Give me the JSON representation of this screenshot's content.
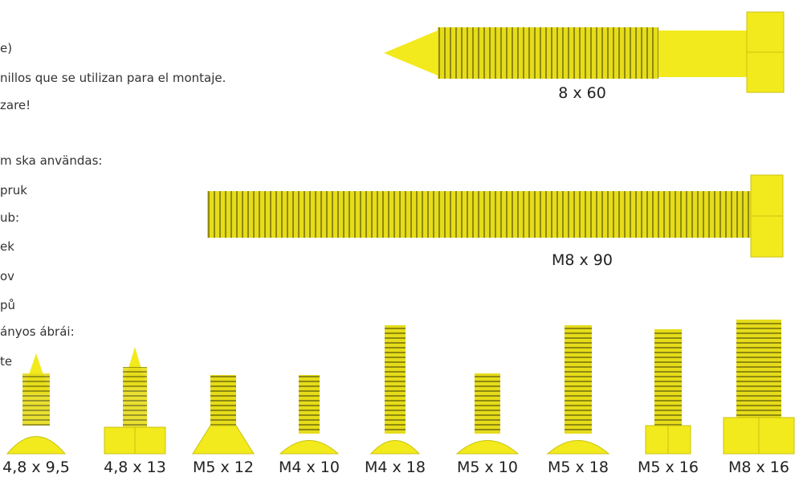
{
  "text_lines": [
    "e)",
    "nillos que se utilizan para el montaje.",
    "zare!",
    "m ska användas:",
    "pruk",
    "ub:",
    "ek",
    "ov",
    "pů",
    "ányos ábrái:",
    "te"
  ],
  "large_screws": [
    {
      "label": "8 x 60"
    },
    {
      "label": "M8 x 90"
    }
  ],
  "small_screws": [
    {
      "label": "4,8 x 9,5"
    },
    {
      "label": "4,8 x 13"
    },
    {
      "label": "M5 x 12"
    },
    {
      "label": "M4 x 10"
    },
    {
      "label": "M4 x 18"
    },
    {
      "label": "M5 x 10"
    },
    {
      "label": "M5 x 18"
    },
    {
      "label": "M5 x 16"
    },
    {
      "label": "M8 x 16"
    }
  ]
}
